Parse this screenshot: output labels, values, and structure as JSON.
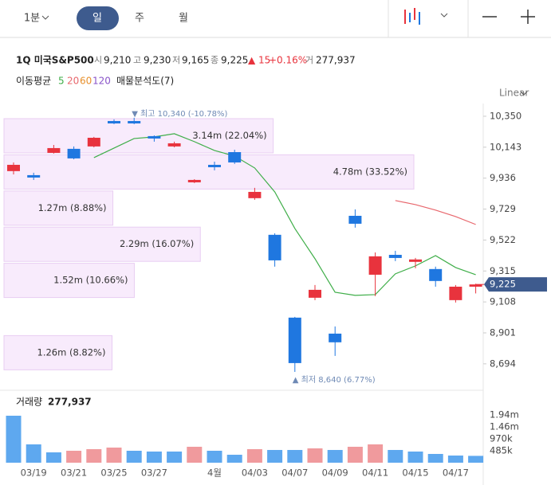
{
  "toolbar": {
    "tabs": [
      "1분",
      "일",
      "주",
      "월"
    ],
    "selected_index": 1
  },
  "header": {
    "symbol": "1Q 미국S&P500",
    "fields": [
      {
        "label": "시",
        "value": "9,210"
      },
      {
        "label": "고",
        "value": "9,230"
      },
      {
        "label": "저",
        "value": "9,165"
      },
      {
        "label": "종",
        "value": "9,225"
      }
    ],
    "change": "▲ 15",
    "change_pct": "+0.16%",
    "volume_label": "거",
    "volume": "277,937"
  },
  "indicators": {
    "label": "이동평균",
    "profile": "매물분석도(7)"
  },
  "chart_data": {
    "type": "candlestick",
    "scale": "Linear",
    "categories": [
      null,
      "03/19",
      null,
      "03/21",
      null,
      "03/25",
      null,
      "03/27",
      null,
      null,
      "4월",
      null,
      "04/03",
      null,
      "04/07",
      null,
      "04/09",
      null,
      "04/11",
      null,
      "04/15",
      null,
      "04/17",
      null
    ],
    "open": [
      9983,
      9956,
      10105,
      10132,
      10148,
      10318,
      10318,
      10217,
      10148,
      9908,
      10025,
      10110,
      9802,
      9557,
      9003,
      9136,
      8896,
      9684,
      9290,
      9423,
      9376,
      9328,
      9120,
      9210
    ],
    "high": [
      10041,
      9972,
      10158,
      10148,
      10212,
      10329,
      10340,
      10222,
      10180,
      9929,
      10046,
      10126,
      9871,
      9567,
      9008,
      9221,
      8944,
      9727,
      9439,
      9450,
      9402,
      9344,
      9221,
      9230
    ],
    "low": [
      9961,
      9924,
      10100,
      10062,
      10142,
      10297,
      10297,
      10180,
      10142,
      9903,
      9988,
      10031,
      9791,
      9344,
      8640,
      9120,
      8747,
      9605,
      9147,
      9381,
      9333,
      9210,
      9104,
      9165
    ],
    "close": [
      10025,
      9940,
      10137,
      10068,
      10206,
      10302,
      10302,
      10201,
      10169,
      9924,
      10009,
      10041,
      9844,
      9386,
      8699,
      9189,
      8838,
      9631,
      9413,
      9402,
      9392,
      9248,
      9210,
      9225
    ],
    "up_color": "#e8333d",
    "down_color": "#1f77e0",
    "ylim": [
      8560,
      10435
    ],
    "yticks": [
      {
        "value": 10350,
        "label": "10,350"
      },
      {
        "value": 10143,
        "label": "10,143"
      },
      {
        "value": 9936,
        "label": "9,936"
      },
      {
        "value": 9729,
        "label": "9,729"
      },
      {
        "value": 9522,
        "label": "9,522"
      },
      {
        "value": 9315,
        "label": "9,315"
      },
      {
        "value": 9108,
        "label": "9,108"
      },
      {
        "value": 8901,
        "label": "8,901"
      },
      {
        "value": 8694,
        "label": "8,694"
      }
    ],
    "last_price": {
      "value": 9225,
      "label": "9,225"
    },
    "high_annotation": "▼ 최고 10,340 (-10.78%)",
    "low_annotation": "▲ 최저 8,640 (6.77%)",
    "moving_averages": [
      {
        "name": "5",
        "color": "#3fae49",
        "values": [
          null,
          null,
          null,
          null,
          10073,
          10137,
          10201,
          10212,
          10233,
          10180,
          10121,
          10084,
          10004,
          9844,
          9599,
          9397,
          9173,
          9152,
          9157,
          9296,
          9349,
          9418,
          9338,
          9290
        ]
      },
      {
        "name": "20",
        "color": "#e8676d",
        "values": [
          null,
          null,
          null,
          null,
          null,
          null,
          null,
          null,
          null,
          null,
          null,
          null,
          null,
          null,
          null,
          null,
          null,
          null,
          null,
          9786,
          9759,
          9722,
          9679,
          9626
        ]
      },
      {
        "name": "60",
        "color": "#e8902c"
      },
      {
        "name": "120",
        "color": "#8a55c9"
      }
    ],
    "volume_profile": {
      "values": [
        3.14,
        4.78,
        1.27,
        2.29,
        1.52,
        null,
        1.26
      ],
      "value_labels": [
        "3.14m (22.04%)",
        "4.78m (33.52%)",
        "1.27m (8.88%)",
        "2.29m (16.07%)",
        "1.52m (10.66%)",
        null,
        "1.26m (8.82%)"
      ],
      "color": "#f8ebfc"
    },
    "volume": {
      "title": "거래량",
      "current": "277,937",
      "values": [
        1908000,
        744000,
        420000,
        485000,
        550000,
        614000,
        485000,
        453000,
        453000,
        647000,
        485000,
        323000,
        550000,
        517000,
        517000,
        582000,
        517000,
        647000,
        744000,
        517000,
        453000,
        356000,
        291000,
        277937
      ],
      "colors": [
        "#5ea8ef",
        "#5ea8ef",
        "#5ea8ef",
        "#f09a9d",
        "#f09a9d",
        "#f09a9d",
        "#5ea8ef",
        "#5ea8ef",
        "#5ea8ef",
        "#f09a9d",
        "#5ea8ef",
        "#5ea8ef",
        "#f09a9d",
        "#5ea8ef",
        "#5ea8ef",
        "#f09a9d",
        "#5ea8ef",
        "#f09a9d",
        "#f09a9d",
        "#5ea8ef",
        "#5ea8ef",
        "#5ea8ef",
        "#5ea8ef",
        "#5ea8ef"
      ],
      "ylim": [
        0,
        2943000
      ],
      "yticks": [
        {
          "value": 485000,
          "label": "485k"
        },
        {
          "value": 970000,
          "label": "970k"
        },
        {
          "value": 1460000,
          "label": "1.46m"
        },
        {
          "value": 1940000,
          "label": "1.94m"
        }
      ]
    }
  }
}
